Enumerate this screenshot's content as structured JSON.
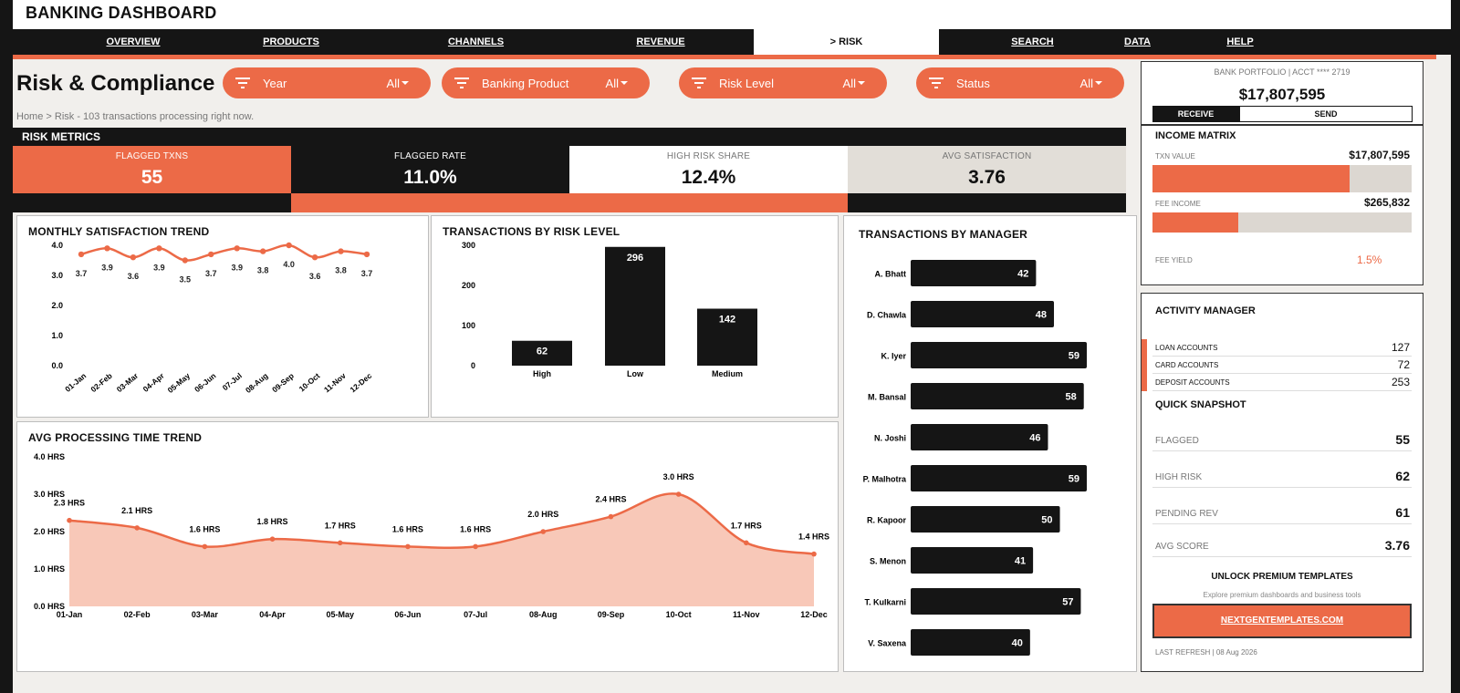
{
  "app": {
    "title": "BANKING DASHBOARD"
  },
  "nav": {
    "tabs": [
      {
        "label": "OVERVIEW",
        "active": false
      },
      {
        "label": "PRODUCTS",
        "active": false
      },
      {
        "label": "CHANNELS",
        "active": false
      },
      {
        "label": "REVENUE",
        "active": false
      },
      {
        "label": "> RISK",
        "active": true
      },
      {
        "label": "SEARCH",
        "active": false
      },
      {
        "label": "DATA",
        "active": false
      },
      {
        "label": "HELP",
        "active": false
      }
    ]
  },
  "page": {
    "title": "Risk & Compliance",
    "breadcrumb": "Home  >  Risk  -  103 transactions processing right now."
  },
  "filters": [
    {
      "label": "Year",
      "value": "All"
    },
    {
      "label": "Banking Product",
      "value": "All"
    },
    {
      "label": "Risk Level",
      "value": "All"
    },
    {
      "label": "Status",
      "value": "All"
    }
  ],
  "risk_metrics": {
    "heading": "RISK METRICS",
    "kpis": [
      {
        "label": "FLAGGED TXNS",
        "value": "55"
      },
      {
        "label": "FLAGGED RATE",
        "value": "11.0%"
      },
      {
        "label": "HIGH RISK SHARE",
        "value": "12.4%"
      },
      {
        "label": "AVG SATISFACTION",
        "value": "3.76"
      }
    ]
  },
  "colors": {
    "accent": "#ec6a47",
    "dark": "#151515",
    "fill": "#f8c8b8",
    "grey": "#dcd7d1"
  },
  "chart_data": [
    {
      "type": "line",
      "title": "MONTHLY SATISFACTION TREND",
      "x": [
        "01-Jan",
        "02-Feb",
        "03-Mar",
        "04-Apr",
        "05-May",
        "06-Jun",
        "07-Jul",
        "08-Aug",
        "09-Sep",
        "10-Oct",
        "11-Nov",
        "12-Dec"
      ],
      "values": [
        3.7,
        3.9,
        3.6,
        3.9,
        3.5,
        3.7,
        3.9,
        3.8,
        4.0,
        3.6,
        3.8,
        3.7
      ],
      "yticks": [
        "0.0",
        "1.0",
        "2.0",
        "3.0",
        "4.0"
      ],
      "ylim": [
        0,
        4
      ]
    },
    {
      "type": "bar",
      "title": "TRANSACTIONS BY RISK LEVEL",
      "categories": [
        "High",
        "Low",
        "Medium"
      ],
      "values": [
        62,
        296,
        142
      ],
      "yticks": [
        "0",
        "100",
        "200",
        "300"
      ],
      "ylim": [
        0,
        300
      ]
    },
    {
      "type": "area",
      "title": "AVG PROCESSING TIME TREND",
      "x": [
        "01-Jan",
        "02-Feb",
        "03-Mar",
        "04-Apr",
        "05-May",
        "06-Jun",
        "07-Jul",
        "08-Aug",
        "09-Sep",
        "10-Oct",
        "11-Nov",
        "12-Dec"
      ],
      "values": [
        2.3,
        2.1,
        1.6,
        1.8,
        1.7,
        1.6,
        1.6,
        2.0,
        2.4,
        3.0,
        1.7,
        1.4
      ],
      "labels": [
        "2.3 HRS",
        "2.1 HRS",
        "1.6 HRS",
        "1.8 HRS",
        "1.7 HRS",
        "1.6 HRS",
        "1.6 HRS",
        "2.0 HRS",
        "2.4 HRS",
        "3.0 HRS",
        "1.7 HRS",
        "1.4 HRS"
      ],
      "yticks": [
        "0.0 HRS",
        "1.0 HRS",
        "2.0 HRS",
        "3.0 HRS",
        "4.0 HRS"
      ],
      "ylim": [
        0,
        4
      ]
    },
    {
      "type": "bar",
      "title": "TRANSACTIONS BY MANAGER",
      "orientation": "horizontal",
      "categories": [
        "A. Bhatt",
        "D. Chawla",
        "K. Iyer",
        "M. Bansal",
        "N. Joshi",
        "P. Malhotra",
        "R. Kapoor",
        "S. Menon",
        "T. Kulkarni",
        "V. Saxena"
      ],
      "values": [
        42,
        48,
        59,
        58,
        46,
        59,
        50,
        41,
        57,
        40
      ]
    }
  ],
  "portfolio": {
    "caption": "BANK PORTFOLIO  |  ACCT **** 2719",
    "amount": "$17,807,595",
    "receive_label": "RECEIVE",
    "send_label": "SEND"
  },
  "income_matrix": {
    "title": "INCOME MATRIX",
    "txn_label": "TXN VALUE",
    "txn_value": "$17,807,595",
    "txn_fill": 0.76,
    "fee_label": "FEE INCOME",
    "fee_value": "$265,832",
    "fee_fill": 0.33,
    "yield_label": "FEE YIELD",
    "yield_value": "1.5%"
  },
  "activity": {
    "title": "ACTIVITY MANAGER",
    "rows": [
      {
        "label": "LOAN ACCOUNTS",
        "value": "127"
      },
      {
        "label": "CARD ACCOUNTS",
        "value": "72"
      },
      {
        "label": "DEPOSIT ACCOUNTS",
        "value": "253"
      }
    ],
    "snapshot_title": "QUICK SNAPSHOT",
    "snapshot": [
      {
        "label": "FLAGGED",
        "value": "55"
      },
      {
        "label": "HIGH RISK",
        "value": "62"
      },
      {
        "label": "PENDING REV",
        "value": "61"
      },
      {
        "label": "AVG SCORE",
        "value": "3.76"
      }
    ],
    "promo_title": "UNLOCK PREMIUM TEMPLATES",
    "promo_sub": "Explore premium dashboards and business tools",
    "promo_button": "NEXTGENTEMPLATES.COM",
    "refresh": "LAST REFRESH  |  08 Aug 2026"
  }
}
